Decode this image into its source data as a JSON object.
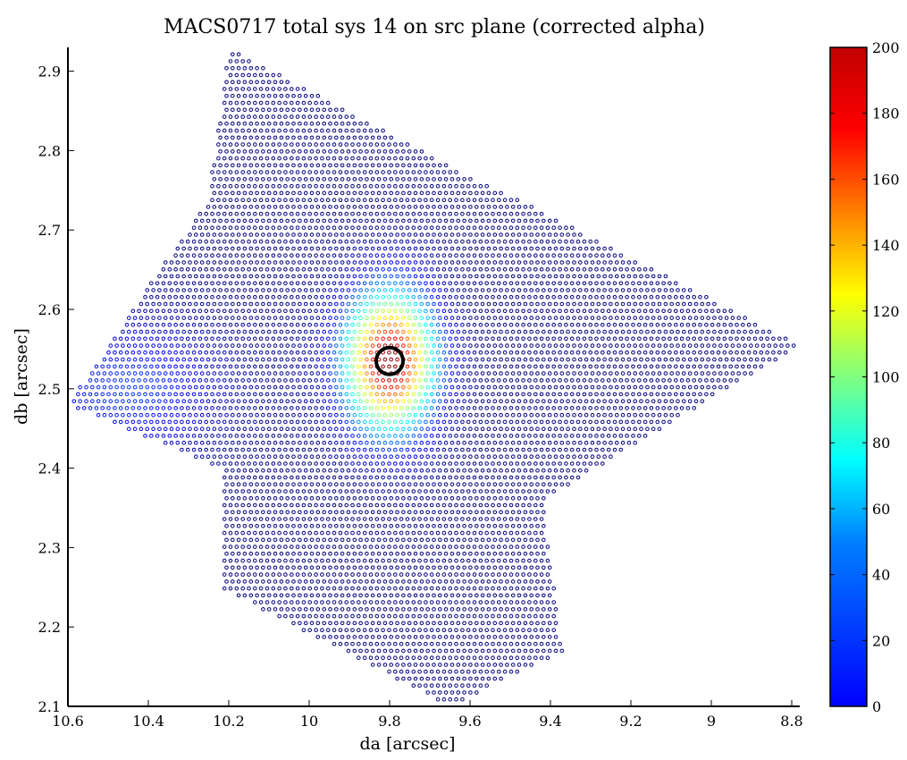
{
  "chart_data": {
    "type": "scatter",
    "title": "MACS0717 total sys 14 on src plane (corrected alpha)",
    "xlabel": "da [arcsec]",
    "ylabel": "db [arcsec]",
    "xlim": [
      10.6,
      8.78
    ],
    "ylim": [
      2.1,
      2.93
    ],
    "x_reversed": true,
    "grid": false,
    "xticks": [
      10.6,
      10.4,
      10.2,
      10,
      9.8,
      9.6,
      9.4,
      9.2,
      9,
      8.8
    ],
    "xtick_labels": [
      "10.6",
      "10.4",
      "10.2",
      "10",
      "9.8",
      "9.6",
      "9.4",
      "9.2",
      "9",
      "8.8"
    ],
    "yticks": [
      2.1,
      2.2,
      2.3,
      2.4,
      2.5,
      2.6,
      2.7,
      2.8,
      2.9
    ],
    "ytick_labels": [
      "2.1",
      "2.2",
      "2.3",
      "2.4",
      "2.5",
      "2.6",
      "2.7",
      "2.8",
      "2.9"
    ],
    "colorbar": {
      "range": [
        0,
        200
      ],
      "ticks": [
        0,
        20,
        40,
        60,
        80,
        100,
        120,
        140,
        160,
        180,
        200
      ],
      "tick_labels": [
        "0",
        "20",
        "40",
        "60",
        "80",
        "100",
        "120",
        "140",
        "160",
        "180",
        "200"
      ],
      "colormap": "jet"
    },
    "point_color_by_value": true,
    "peak": {
      "x": 9.8,
      "y": 2.535,
      "value": 200
    },
    "region_vertices": [
      {
        "x": 10.6,
        "y": 2.48
      },
      {
        "x": 10.25,
        "y": 2.74
      },
      {
        "x": 10.2,
        "y": 2.93
      },
      {
        "x": 9.65,
        "y": 2.78
      },
      {
        "x": 9.45,
        "y": 2.73
      },
      {
        "x": 8.78,
        "y": 2.555
      },
      {
        "x": 9.42,
        "y": 2.36
      },
      {
        "x": 9.37,
        "y": 2.17
      },
      {
        "x": 9.65,
        "y": 2.1
      },
      {
        "x": 10.22,
        "y": 2.25
      },
      {
        "x": 10.22,
        "y": 2.4
      }
    ],
    "highlight": {
      "type": "circle-marker",
      "x": 9.8,
      "y": 2.535,
      "color": "#000000"
    }
  }
}
